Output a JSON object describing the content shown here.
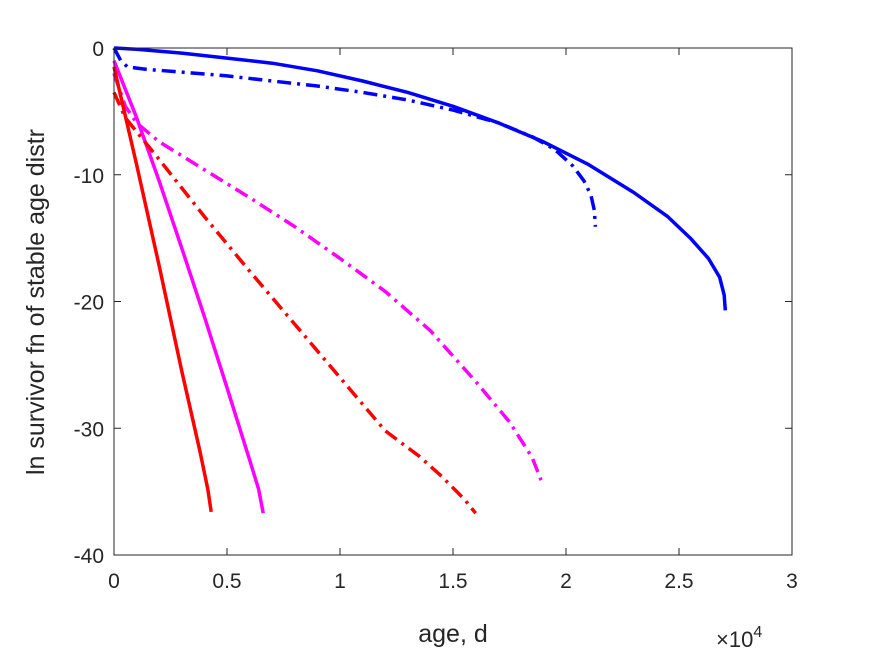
{
  "chart_data": {
    "type": "line",
    "title": "",
    "xlabel": "age, d",
    "ylabel": "ln survivor fn of stable age distr",
    "x_exponent_label": "×10",
    "x_exponent_power": "4",
    "xlim": [
      0,
      30000
    ],
    "ylim": [
      -40,
      0
    ],
    "xticks": [
      0,
      5000,
      10000,
      15000,
      20000,
      25000,
      30000
    ],
    "xtick_labels": [
      "0",
      "0.5",
      "1",
      "1.5",
      "2",
      "2.5",
      "3"
    ],
    "yticks": [
      0,
      -10,
      -20,
      -30,
      -40
    ],
    "ytick_labels": [
      "0",
      "-10",
      "-20",
      "-30",
      "-40"
    ],
    "grid": false,
    "box": true,
    "series": [
      {
        "color": "#0000ff",
        "style": "solid",
        "x": [
          0,
          1000,
          3000,
          5000,
          7000,
          9000,
          11000,
          13000,
          15000,
          17000,
          19000,
          21000,
          23000,
          24500,
          25500,
          26300,
          26800,
          27000,
          27050
        ],
        "y": [
          0,
          -0.1,
          -0.4,
          -0.8,
          -1.2,
          -1.8,
          -2.6,
          -3.5,
          -4.6,
          -5.9,
          -7.4,
          -9.2,
          -11.4,
          -13.3,
          -15.0,
          -16.6,
          -18.1,
          -19.5,
          -20.7
        ]
      },
      {
        "color": "#0000ff",
        "style": "dashdot",
        "x": [
          0,
          300,
          600,
          1500,
          3000,
          5000,
          7000,
          9000,
          11000,
          13000,
          15000,
          17000,
          18500,
          19500,
          20300,
          20800,
          21100,
          21250,
          21300
        ],
        "y": [
          0,
          -1.0,
          -1.5,
          -1.7,
          -1.9,
          -2.2,
          -2.6,
          -3.0,
          -3.5,
          -4.1,
          -4.9,
          -5.9,
          -7.0,
          -8.0,
          -9.3,
          -10.5,
          -11.6,
          -12.8,
          -14.1
        ]
      },
      {
        "color": "#ff00ff",
        "style": "solid",
        "x": [
          0,
          1000,
          2000,
          3000,
          4000,
          5000,
          6000,
          6400,
          6600
        ],
        "y": [
          -1.0,
          -5.5,
          -10.5,
          -15.8,
          -21.2,
          -26.8,
          -32.5,
          -34.8,
          -36.7
        ]
      },
      {
        "color": "#ff00ff",
        "style": "dashdot",
        "x": [
          0,
          500,
          1000,
          2000,
          4000,
          6000,
          8000,
          10000,
          12000,
          14000,
          16000,
          17500,
          18500,
          18900
        ],
        "y": [
          -2.0,
          -4.6,
          -5.9,
          -7.4,
          -9.6,
          -11.8,
          -14.1,
          -16.6,
          -19.2,
          -22.3,
          -26.3,
          -29.5,
          -32.3,
          -34.1
        ]
      },
      {
        "color": "#ff0000",
        "style": "solid",
        "x": [
          0,
          1000,
          2000,
          3000,
          3800,
          4150,
          4300
        ],
        "y": [
          -1.5,
          -9.2,
          -17.2,
          -25.5,
          -31.8,
          -34.8,
          -36.6
        ]
      },
      {
        "color": "#ff0000",
        "style": "dashdot",
        "x": [
          0,
          500,
          1000,
          2000,
          4000,
          6000,
          8000,
          10000,
          12000,
          13500,
          14500,
          15500,
          16000
        ],
        "y": [
          -3.5,
          -5.5,
          -6.6,
          -8.8,
          -13.3,
          -17.6,
          -21.8,
          -26.0,
          -30.2,
          -32.2,
          -33.8,
          -35.6,
          -36.7
        ]
      }
    ]
  }
}
